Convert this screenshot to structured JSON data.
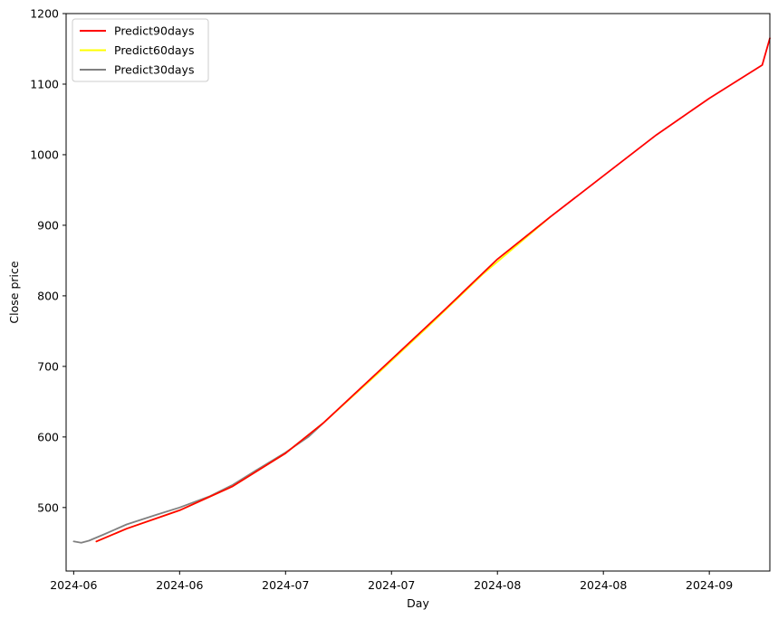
{
  "chart_data": {
    "type": "line",
    "xlabel": "Day",
    "ylabel": "Close price",
    "xlim": [
      "2024-06-07",
      "2024-09-08"
    ],
    "ylim": [
      410,
      1200
    ],
    "y_ticks": [
      500,
      600,
      700,
      800,
      900,
      1000,
      1100,
      1200
    ],
    "x_ticks": [
      {
        "date": "2024-06-08",
        "label": "2024-06"
      },
      {
        "date": "2024-06-22",
        "label": "2024-06"
      },
      {
        "date": "2024-07-06",
        "label": "2024-07"
      },
      {
        "date": "2024-07-20",
        "label": "2024-07"
      },
      {
        "date": "2024-08-03",
        "label": "2024-08"
      },
      {
        "date": "2024-08-17",
        "label": "2024-08"
      },
      {
        "date": "2024-08-31",
        "label": "2024-09"
      }
    ],
    "legend": {
      "position": "top-left"
    },
    "grid": false,
    "series": [
      {
        "name": "Predict90days",
        "color": "#ff0000",
        "points": [
          {
            "x": "2024-06-11",
            "y": 452
          },
          {
            "x": "2024-06-15",
            "y": 470
          },
          {
            "x": "2024-06-22",
            "y": 496
          },
          {
            "x": "2024-06-29",
            "y": 530
          },
          {
            "x": "2024-07-06",
            "y": 577
          },
          {
            "x": "2024-07-11",
            "y": 620
          },
          {
            "x": "2024-07-20",
            "y": 710
          },
          {
            "x": "2024-07-27",
            "y": 780
          },
          {
            "x": "2024-08-03",
            "y": 852
          },
          {
            "x": "2024-08-10",
            "y": 912
          },
          {
            "x": "2024-08-17",
            "y": 970
          },
          {
            "x": "2024-08-24",
            "y": 1028
          },
          {
            "x": "2024-08-31",
            "y": 1080
          },
          {
            "x": "2024-09-07",
            "y": 1127
          },
          {
            "x": "2024-09-08",
            "y": 1165
          }
        ]
      },
      {
        "name": "Predict60days",
        "color": "#ffff00",
        "points": [
          {
            "x": "2024-06-11",
            "y": 452
          },
          {
            "x": "2024-06-15",
            "y": 470
          },
          {
            "x": "2024-06-22",
            "y": 496
          },
          {
            "x": "2024-06-29",
            "y": 530
          },
          {
            "x": "2024-07-06",
            "y": 577
          },
          {
            "x": "2024-07-11",
            "y": 620
          },
          {
            "x": "2024-07-18",
            "y": 688
          },
          {
            "x": "2024-07-25",
            "y": 758
          },
          {
            "x": "2024-08-01",
            "y": 830
          },
          {
            "x": "2024-08-10",
            "y": 912
          }
        ]
      },
      {
        "name": "Predict30days",
        "color": "#808080",
        "points": [
          {
            "x": "2024-06-08",
            "y": 452
          },
          {
            "x": "2024-06-09",
            "y": 450
          },
          {
            "x": "2024-06-10",
            "y": 453
          },
          {
            "x": "2024-06-12",
            "y": 462
          },
          {
            "x": "2024-06-15",
            "y": 476
          },
          {
            "x": "2024-06-19",
            "y": 490
          },
          {
            "x": "2024-06-22",
            "y": 500
          },
          {
            "x": "2024-06-26",
            "y": 516
          },
          {
            "x": "2024-06-29",
            "y": 532
          },
          {
            "x": "2024-07-02",
            "y": 552
          },
          {
            "x": "2024-07-06",
            "y": 578
          },
          {
            "x": "2024-07-09",
            "y": 600
          },
          {
            "x": "2024-07-11",
            "y": 620
          }
        ]
      }
    ]
  }
}
